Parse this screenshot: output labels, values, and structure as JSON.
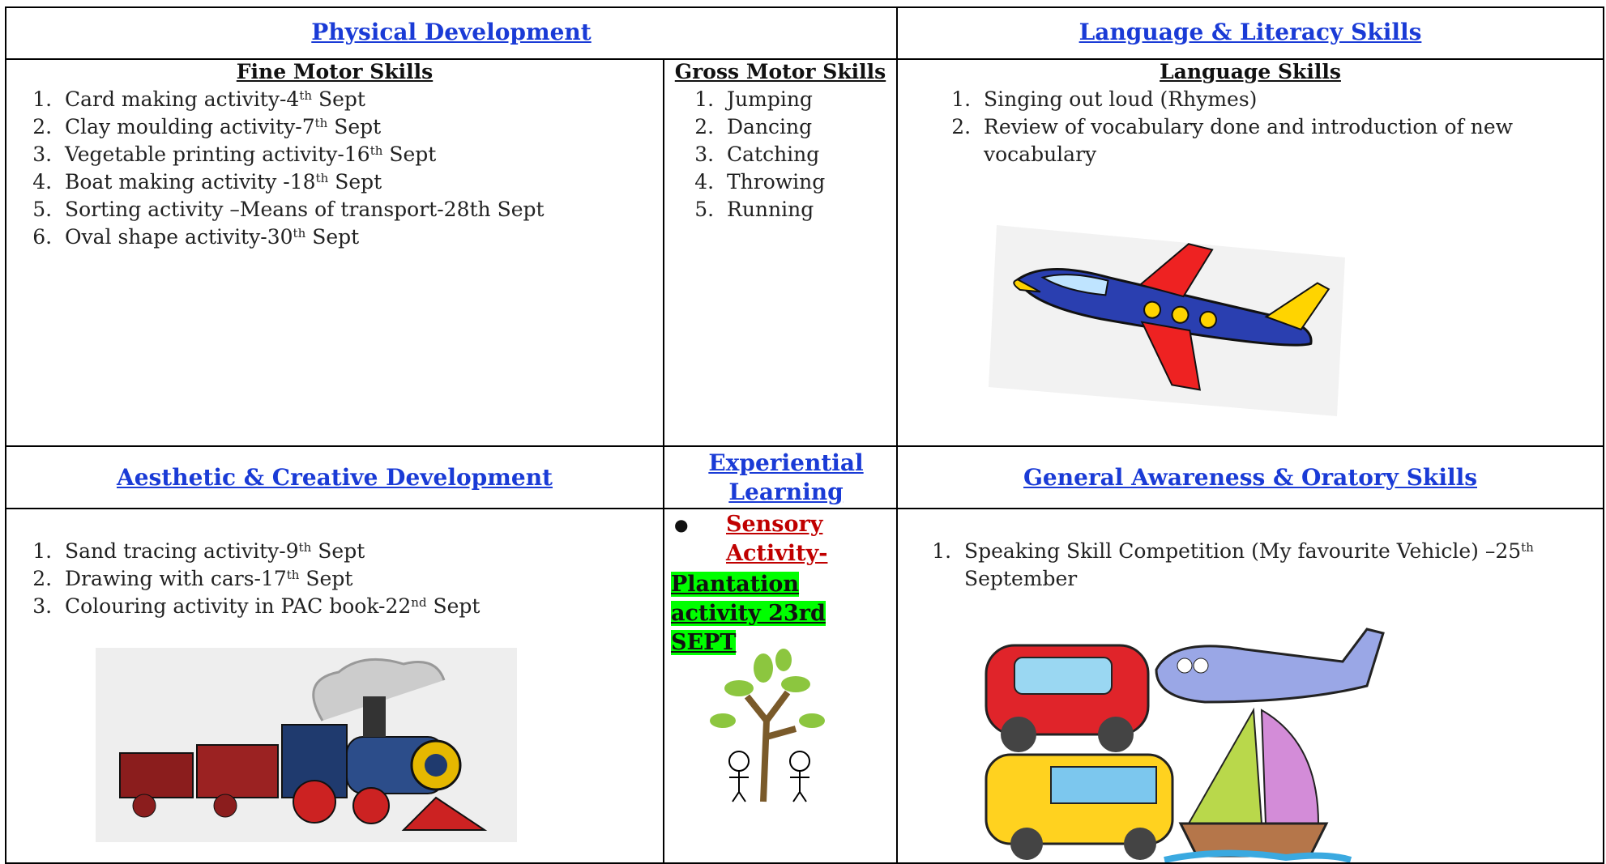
{
  "physical": {
    "title": "Physical Development",
    "fine_motor": {
      "title": "Fine Motor Skills",
      "items": [
        {
          "text": "Card making activity-4",
          "sup": "th",
          "after": " Sept"
        },
        {
          "text": "Clay moulding activity-7",
          "sup": "th",
          "after": " Sept"
        },
        {
          "text": "Vegetable printing activity-16",
          "sup": "th",
          "after": " Sept"
        },
        {
          "text": "Boat making activity -18",
          "sup": "th",
          "after": " Sept"
        },
        {
          "text": "Sorting activity –Means of transport-28th Sept"
        },
        {
          "text": "Oval shape activity-30",
          "sup": "th",
          "after": " Sept"
        }
      ]
    },
    "gross_motor": {
      "title": "Gross Motor Skills",
      "items": [
        {
          "text": "Jumping"
        },
        {
          "text": "Dancing"
        },
        {
          "text": "Catching"
        },
        {
          "text": "Throwing"
        },
        {
          "text": "Running"
        }
      ]
    }
  },
  "language": {
    "title": "Language & Literacy Skills",
    "sub": {
      "title": "Language Skills",
      "items": [
        {
          "text": "Singing out loud (Rhymes)"
        },
        {
          "text": "Review of vocabulary done and introduction of new vocabulary"
        }
      ]
    }
  },
  "aesthetic": {
    "title": "Aesthetic & Creative Development",
    "items": [
      {
        "text": "Sand tracing activity-9",
        "sup": "th",
        "after": " Sept"
      },
      {
        "text": " Drawing with cars-17",
        "sup": "th",
        "after": " Sept"
      },
      {
        "text": "Colouring activity in PAC book-22",
        "sup": "nd",
        "after": " Sept"
      }
    ]
  },
  "experiential": {
    "title": "Experiential Learning",
    "activity": "Sensory Activity-",
    "highlight": "Plantation activity 23rd SEPT"
  },
  "general": {
    "title": "General Awareness & Oratory Skills",
    "items": [
      {
        "text": "Speaking Skill Competition (My favourite  Vehicle) –25",
        "sup": "th",
        "after": " September"
      }
    ]
  }
}
